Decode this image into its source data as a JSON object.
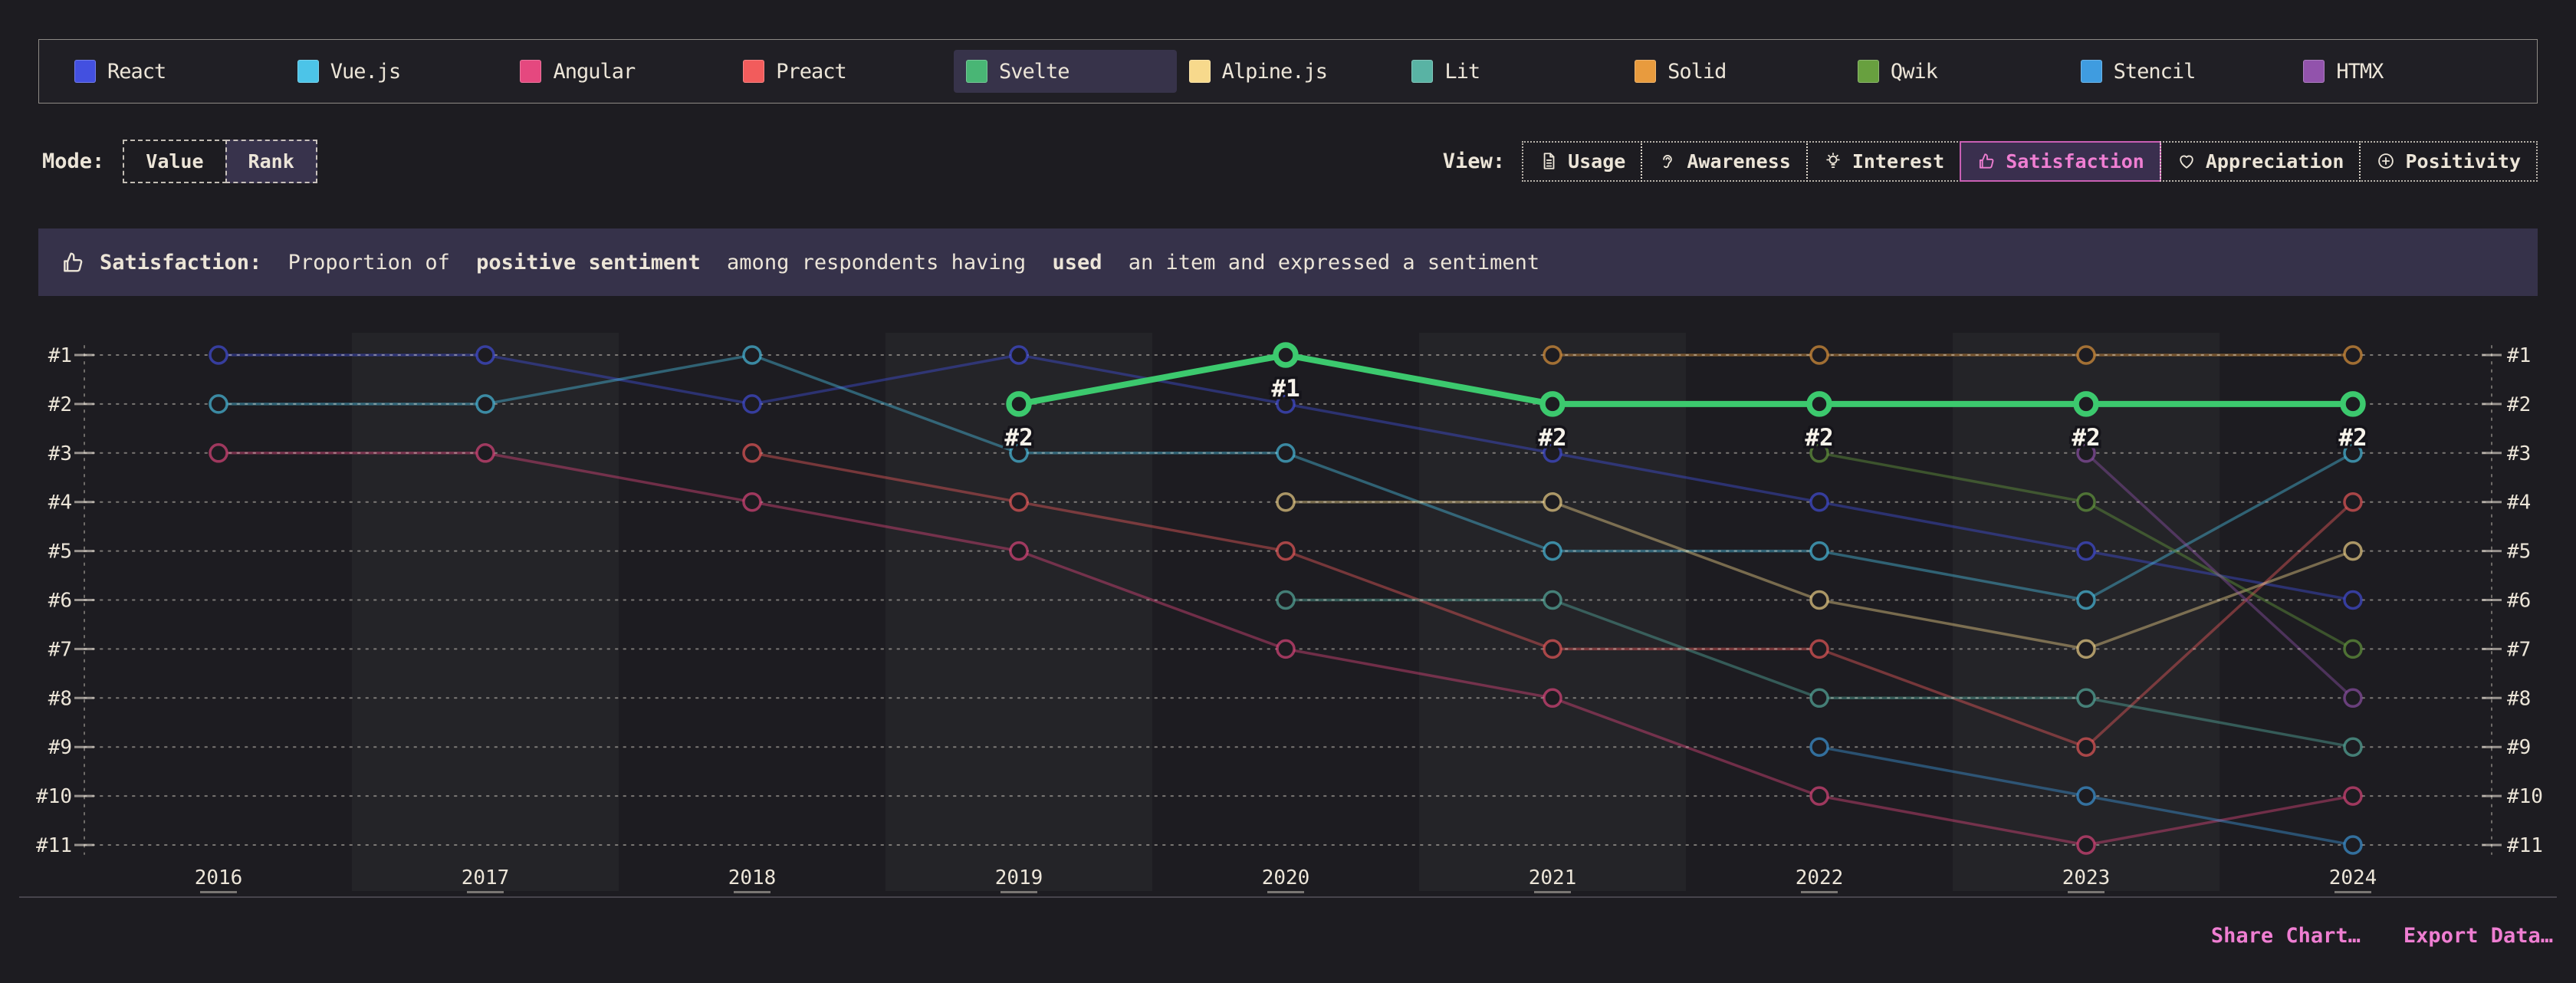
{
  "page": {
    "bg": "#1d1c21",
    "cream": "#ece5d8",
    "accent_pink": "#ef7ed2"
  },
  "legend": {
    "items": [
      {
        "label": "React",
        "color": "#4350e0",
        "highlighted": false
      },
      {
        "label": "Vue.js",
        "color": "#4cc4e8",
        "highlighted": false
      },
      {
        "label": "Angular",
        "color": "#e5487f",
        "highlighted": false
      },
      {
        "label": "Preact",
        "color": "#f25c5c",
        "highlighted": false
      },
      {
        "label": "Svelte",
        "color": "#49b675",
        "highlighted": true
      },
      {
        "label": "Alpine.js",
        "color": "#f7d98c",
        "highlighted": false
      },
      {
        "label": "Lit",
        "color": "#59b3a4",
        "highlighted": false
      },
      {
        "label": "Solid",
        "color": "#e89b3e",
        "highlighted": false
      },
      {
        "label": "Qwik",
        "color": "#68a03f",
        "highlighted": false
      },
      {
        "label": "Stencil",
        "color": "#3f9ce0",
        "highlighted": false
      },
      {
        "label": "HTMX",
        "color": "#9253ac",
        "highlighted": false
      }
    ]
  },
  "mode": {
    "label": "Mode:",
    "buttons": [
      {
        "label": "Value",
        "selected": false
      },
      {
        "label": "Rank",
        "selected": true
      }
    ]
  },
  "view": {
    "label": "View:",
    "buttons": [
      {
        "label": "Usage",
        "icon": "file-icon",
        "selected": false
      },
      {
        "label": "Awareness",
        "icon": "ear-icon",
        "selected": false
      },
      {
        "label": "Interest",
        "icon": "lightbulb-icon",
        "selected": false
      },
      {
        "label": "Satisfaction",
        "icon": "thumbs-up-icon",
        "selected": true
      },
      {
        "label": "Appreciation",
        "icon": "heart-icon",
        "selected": false
      },
      {
        "label": "Positivity",
        "icon": "plus-circle-icon",
        "selected": false
      }
    ]
  },
  "banner": {
    "icon": "thumbs-up-icon",
    "segments": [
      {
        "text": "Satisfaction:",
        "bold": true
      },
      {
        "text": " Proportion of ",
        "bold": false
      },
      {
        "text": "positive sentiment",
        "bold": true
      },
      {
        "text": " among respondents having ",
        "bold": false
      },
      {
        "text": "used",
        "bold": true
      },
      {
        "text": " an item and expressed a sentiment",
        "bold": false
      }
    ]
  },
  "chart_data": {
    "type": "line",
    "subtype": "bump-rank",
    "title": "Satisfaction rankings over time",
    "x": [
      "2016",
      "2017",
      "2018",
      "2019",
      "2020",
      "2021",
      "2022",
      "2023",
      "2024"
    ],
    "y_axis": {
      "labels": [
        "#1",
        "#2",
        "#3",
        "#4",
        "#5",
        "#6",
        "#7",
        "#8",
        "#9",
        "#10",
        "#11"
      ],
      "min": 1,
      "max": 11,
      "inverted": true,
      "both_sides": true,
      "grid": "dotted"
    },
    "highlighted_series": "Svelte",
    "highlight_color": "#3cc96e",
    "series": [
      {
        "name": "React",
        "color": "#4350e0",
        "ranks": [
          1,
          1,
          2,
          1,
          2,
          3,
          4,
          5,
          6
        ]
      },
      {
        "name": "Vue.js",
        "color": "#4cc4e8",
        "ranks": [
          2,
          2,
          1,
          3,
          3,
          5,
          5,
          6,
          3
        ]
      },
      {
        "name": "Angular",
        "color": "#e5487f",
        "ranks": [
          3,
          3,
          4,
          5,
          7,
          8,
          10,
          11,
          10
        ]
      },
      {
        "name": "Preact",
        "color": "#f25c5c",
        "ranks": [
          null,
          null,
          3,
          4,
          5,
          7,
          7,
          9,
          4
        ]
      },
      {
        "name": "Svelte",
        "color": "#3cc96e",
        "ranks": [
          null,
          null,
          null,
          2,
          1,
          2,
          2,
          2,
          2
        ]
      },
      {
        "name": "Alpine.js",
        "color": "#f7d98c",
        "ranks": [
          null,
          null,
          null,
          null,
          4,
          4,
          6,
          7,
          5
        ]
      },
      {
        "name": "Lit",
        "color": "#59b3a4",
        "ranks": [
          null,
          null,
          null,
          null,
          6,
          6,
          8,
          8,
          9
        ]
      },
      {
        "name": "Solid",
        "color": "#e89b3e",
        "ranks": [
          null,
          null,
          null,
          null,
          null,
          1,
          1,
          1,
          1
        ]
      },
      {
        "name": "Qwik",
        "color": "#68a03f",
        "ranks": [
          null,
          null,
          null,
          null,
          null,
          null,
          3,
          4,
          7
        ]
      },
      {
        "name": "Stencil",
        "color": "#3f9ce0",
        "ranks": [
          null,
          null,
          null,
          null,
          null,
          null,
          9,
          10,
          11
        ]
      },
      {
        "name": "HTMX",
        "color": "#9253ac",
        "ranks": [
          null,
          null,
          null,
          null,
          null,
          null,
          null,
          3,
          8
        ]
      }
    ],
    "point_labels": {
      "series": "Svelte",
      "labels": [
        null,
        null,
        null,
        "#2",
        "#1",
        "#2",
        "#2",
        "#2",
        "#2"
      ]
    },
    "layout": {
      "x0": 285,
      "dx": 348,
      "y_top": 463,
      "dy": 63.9,
      "left_axis_x": 110,
      "right_axis_x": 3250,
      "svg_top": 420,
      "band_columns": [
        1,
        3,
        5,
        7
      ],
      "band_color": "rgba(255,255,255,0.035)"
    }
  },
  "footer": {
    "links": [
      "Share Chart…",
      "Export Data…"
    ]
  }
}
